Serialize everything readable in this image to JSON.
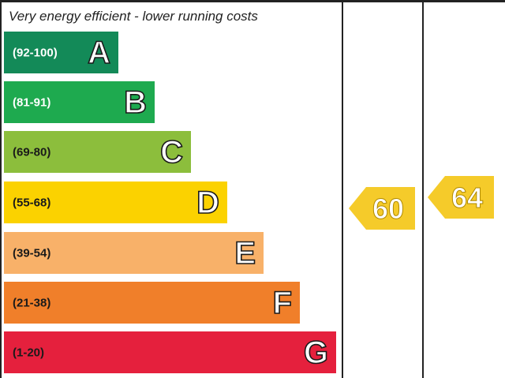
{
  "caption": "Very energy efficient - lower running costs",
  "chart_data": {
    "type": "bar",
    "bands": [
      {
        "range": "(92-100)",
        "letter": "A",
        "color": "#138a58",
        "level": 1
      },
      {
        "range": "(81-91)",
        "letter": "B",
        "color": "#1eaa4f",
        "level": 2
      },
      {
        "range": "(69-80)",
        "letter": "C",
        "color": "#8cbe3c",
        "level": 3
      },
      {
        "range": "(55-68)",
        "letter": "D",
        "color": "#fbd200",
        "level": 4
      },
      {
        "range": "(39-54)",
        "letter": "E",
        "color": "#f8b169",
        "level": 5
      },
      {
        "range": "(21-38)",
        "letter": "F",
        "color": "#f07f2a",
        "level": 6
      },
      {
        "range": "(1-20)",
        "letter": "G",
        "color": "#e5203d",
        "level": 7
      }
    ],
    "ratings": {
      "current": {
        "value": 60,
        "band": "D",
        "color": "#f5cb2a"
      },
      "potential": {
        "value": 64,
        "band": "D",
        "color": "#f5cb2a"
      }
    }
  }
}
